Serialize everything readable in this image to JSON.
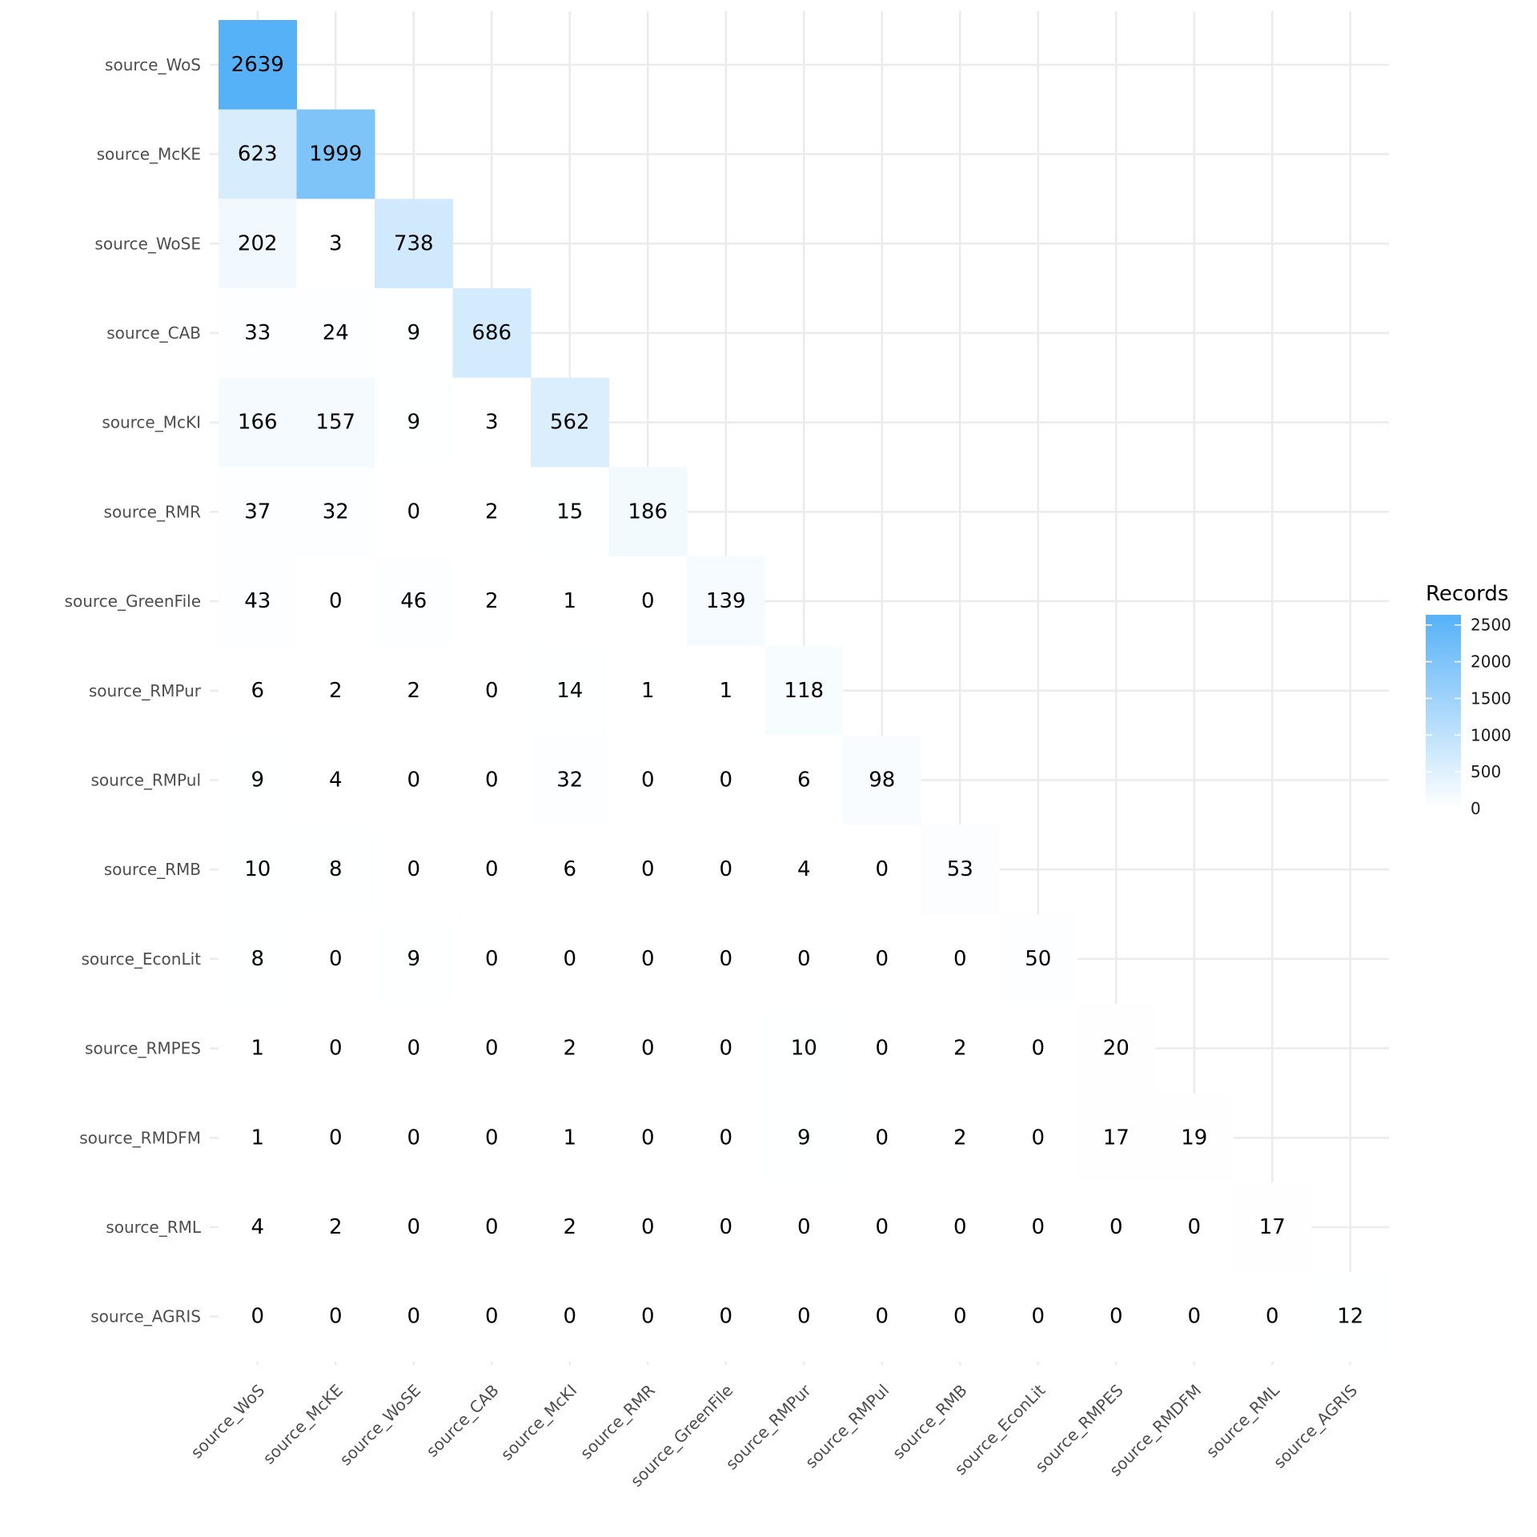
{
  "chart_data": {
    "type": "heatmap",
    "title": "",
    "xlabel": "",
    "ylabel": "",
    "categories": [
      "source_WoS",
      "source_McKE",
      "source_WoSE",
      "source_CAB",
      "source_McKI",
      "source_RMR",
      "source_GreenFile",
      "source_RMPur",
      "source_RMPul",
      "source_RMB",
      "source_EconLit",
      "source_RMPES",
      "source_RMDFM",
      "source_RML",
      "source_AGRIS"
    ],
    "matrix": [
      [
        2639
      ],
      [
        623,
        1999
      ],
      [
        202,
        3,
        738
      ],
      [
        33,
        24,
        9,
        686
      ],
      [
        166,
        157,
        9,
        3,
        562
      ],
      [
        37,
        32,
        0,
        2,
        15,
        186
      ],
      [
        43,
        0,
        46,
        2,
        1,
        0,
        139
      ],
      [
        6,
        2,
        2,
        0,
        14,
        1,
        1,
        118
      ],
      [
        9,
        4,
        0,
        0,
        32,
        0,
        0,
        6,
        98
      ],
      [
        10,
        8,
        0,
        0,
        6,
        0,
        0,
        4,
        0,
        53
      ],
      [
        8,
        0,
        9,
        0,
        0,
        0,
        0,
        0,
        0,
        0,
        50
      ],
      [
        1,
        0,
        0,
        0,
        2,
        0,
        0,
        10,
        0,
        2,
        0,
        20
      ],
      [
        1,
        0,
        0,
        0,
        1,
        0,
        0,
        9,
        0,
        2,
        0,
        17,
        19
      ],
      [
        4,
        2,
        0,
        0,
        2,
        0,
        0,
        0,
        0,
        0,
        0,
        0,
        0,
        17
      ],
      [
        0,
        0,
        0,
        0,
        0,
        0,
        0,
        0,
        0,
        0,
        0,
        0,
        0,
        0,
        12
      ]
    ],
    "legend": {
      "title": "Records",
      "position": "right",
      "ticks": [
        0,
        500,
        1000,
        1500,
        2000,
        2500
      ],
      "range": [
        0,
        2639
      ],
      "low_color": "#ffffff",
      "high_color": "#56b1f7"
    },
    "grid": true
  }
}
